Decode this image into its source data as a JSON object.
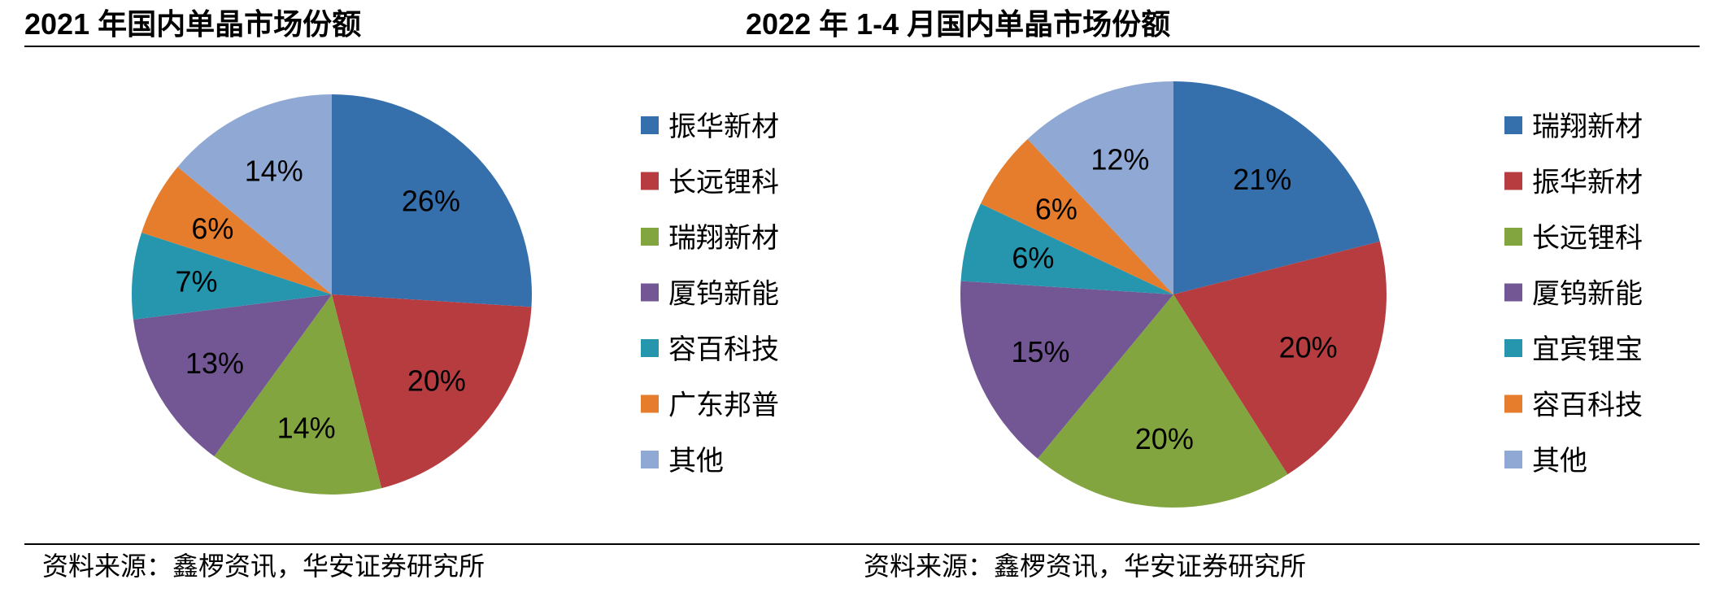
{
  "footer_source": "资料来源：鑫椤资讯，华安证券研究所",
  "chart_data": [
    {
      "type": "pie",
      "title": "2021 年国内单晶市场份额",
      "labels": [
        "振华新材",
        "长远锂科",
        "瑞翔新材",
        "厦钨新能",
        "容百科技",
        "广东邦普",
        "其他"
      ],
      "values": [
        26,
        20,
        14,
        13,
        7,
        6,
        14
      ],
      "value_labels": [
        "26%",
        "20%",
        "14%",
        "13%",
        "7%",
        "6%",
        "14%"
      ],
      "colors": [
        "#3670AC",
        "#B63C40",
        "#82A540",
        "#735794",
        "#2596AE",
        "#E57D2C",
        "#8FA9D4"
      ],
      "legend_position": "right"
    },
    {
      "type": "pie",
      "title": "2022 年 1-4 月国内单晶市场份额",
      "labels": [
        "瑞翔新材",
        "振华新材",
        "长远锂科",
        "厦钨新能",
        "宜宾锂宝",
        "容百科技",
        "其他"
      ],
      "values": [
        21,
        20,
        20,
        15,
        6,
        6,
        12
      ],
      "value_labels": [
        "21%",
        "20%",
        "20%",
        "15%",
        "6%",
        "6%",
        "12%"
      ],
      "colors": [
        "#3670AC",
        "#B63C40",
        "#82A540",
        "#735794",
        "#2596AE",
        "#E57D2C",
        "#8FA9D4"
      ],
      "legend_position": "right"
    }
  ]
}
